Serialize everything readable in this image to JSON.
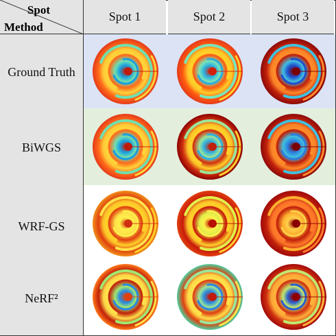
{
  "header": {
    "spot_label": "Spot",
    "method_label": "Method",
    "columns": [
      "Spot 1",
      "Spot 2",
      "Spot 3"
    ]
  },
  "rows": [
    {
      "label": "Ground Truth"
    },
    {
      "label": "BiWGS"
    },
    {
      "label": "WRF-GS"
    },
    {
      "label": "NeRF²"
    }
  ],
  "colors": {
    "header_bg": "#e4e4e4",
    "ground_truth_band": "#dbe3f5",
    "biwgs_band": "#e3efdc",
    "heat_low": "#1a3fb0",
    "heat_mid": "#9fe05a",
    "heat_high": "#8b0000"
  },
  "colormap": "jet"
}
